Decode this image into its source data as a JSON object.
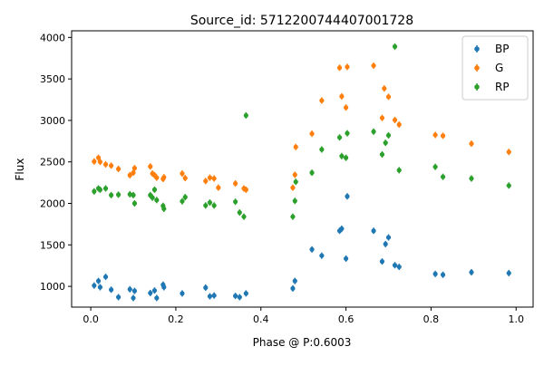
{
  "chart_data": {
    "type": "scatter",
    "title": "Source_id: 5712200744407001728",
    "xlabel": "Phase @ P:0.6003",
    "ylabel": "Flux",
    "xlim": [
      -0.045,
      1.04
    ],
    "ylim": [
      750,
      4080
    ],
    "xticks": [
      0.0,
      0.2,
      0.4,
      0.6,
      0.8,
      1.0
    ],
    "xtick_labels": [
      "0.0",
      "0.2",
      "0.4",
      "0.6",
      "0.8",
      "1.0"
    ],
    "yticks": [
      1000,
      1500,
      2000,
      2500,
      3000,
      3500,
      4000
    ],
    "ytick_labels": [
      "1000",
      "1500",
      "2000",
      "2500",
      "3000",
      "3500",
      "4000"
    ],
    "grid": false,
    "legend_position": "top-right",
    "series": [
      {
        "name": "BP",
        "color": "#1f77b4",
        "points": [
          [
            0.008,
            1010
          ],
          [
            0.018,
            1065
          ],
          [
            0.022,
            990
          ],
          [
            0.035,
            1115
          ],
          [
            0.048,
            960
          ],
          [
            0.065,
            870
          ],
          [
            0.092,
            965
          ],
          [
            0.1,
            860
          ],
          [
            0.103,
            945
          ],
          [
            0.14,
            920
          ],
          [
            0.15,
            950
          ],
          [
            0.155,
            860
          ],
          [
            0.17,
            1020
          ],
          [
            0.172,
            990
          ],
          [
            0.215,
            915
          ],
          [
            0.27,
            985
          ],
          [
            0.28,
            880
          ],
          [
            0.29,
            890
          ],
          [
            0.34,
            885
          ],
          [
            0.35,
            870
          ],
          [
            0.365,
            915
          ],
          [
            0.475,
            975
          ],
          [
            0.48,
            1065
          ],
          [
            0.52,
            1445
          ],
          [
            0.543,
            1370
          ],
          [
            0.585,
            1670
          ],
          [
            0.59,
            1695
          ],
          [
            0.6,
            1335
          ],
          [
            0.603,
            2085
          ],
          [
            0.665,
            1670
          ],
          [
            0.685,
            1300
          ],
          [
            0.693,
            1510
          ],
          [
            0.7,
            1590
          ],
          [
            0.715,
            1255
          ],
          [
            0.725,
            1235
          ],
          [
            0.81,
            1150
          ],
          [
            0.828,
            1140
          ],
          [
            0.895,
            1170
          ],
          [
            0.983,
            1160
          ]
        ]
      },
      {
        "name": "G",
        "color": "#ff7f0e",
        "points": [
          [
            0.008,
            2505
          ],
          [
            0.018,
            2550
          ],
          [
            0.022,
            2500
          ],
          [
            0.035,
            2470
          ],
          [
            0.048,
            2455
          ],
          [
            0.065,
            2415
          ],
          [
            0.092,
            2340
          ],
          [
            0.1,
            2370
          ],
          [
            0.103,
            2425
          ],
          [
            0.14,
            2445
          ],
          [
            0.145,
            2360
          ],
          [
            0.15,
            2340
          ],
          [
            0.155,
            2310
          ],
          [
            0.17,
            2295
          ],
          [
            0.172,
            2315
          ],
          [
            0.215,
            2360
          ],
          [
            0.222,
            2305
          ],
          [
            0.27,
            2270
          ],
          [
            0.28,
            2310
          ],
          [
            0.29,
            2300
          ],
          [
            0.3,
            2190
          ],
          [
            0.34,
            2240
          ],
          [
            0.36,
            2180
          ],
          [
            0.365,
            2165
          ],
          [
            0.475,
            2190
          ],
          [
            0.48,
            2345
          ],
          [
            0.482,
            2680
          ],
          [
            0.52,
            2840
          ],
          [
            0.543,
            3240
          ],
          [
            0.585,
            3635
          ],
          [
            0.59,
            3290
          ],
          [
            0.6,
            3155
          ],
          [
            0.603,
            3645
          ],
          [
            0.665,
            3660
          ],
          [
            0.685,
            3030
          ],
          [
            0.69,
            3385
          ],
          [
            0.7,
            3285
          ],
          [
            0.715,
            3005
          ],
          [
            0.725,
            2950
          ],
          [
            0.81,
            2825
          ],
          [
            0.828,
            2815
          ],
          [
            0.895,
            2720
          ],
          [
            0.983,
            2620
          ]
        ]
      },
      {
        "name": "RP",
        "color": "#2ca02c",
        "points": [
          [
            0.008,
            2145
          ],
          [
            0.018,
            2180
          ],
          [
            0.022,
            2165
          ],
          [
            0.035,
            2180
          ],
          [
            0.048,
            2100
          ],
          [
            0.065,
            2105
          ],
          [
            0.092,
            2110
          ],
          [
            0.1,
            2100
          ],
          [
            0.103,
            2000
          ],
          [
            0.14,
            2100
          ],
          [
            0.145,
            2070
          ],
          [
            0.15,
            2165
          ],
          [
            0.155,
            2040
          ],
          [
            0.17,
            1970
          ],
          [
            0.172,
            1935
          ],
          [
            0.215,
            2025
          ],
          [
            0.222,
            2075
          ],
          [
            0.27,
            1975
          ],
          [
            0.28,
            2010
          ],
          [
            0.29,
            1975
          ],
          [
            0.34,
            2020
          ],
          [
            0.35,
            1890
          ],
          [
            0.36,
            1840
          ],
          [
            0.365,
            3060
          ],
          [
            0.475,
            1840
          ],
          [
            0.48,
            2030
          ],
          [
            0.482,
            2260
          ],
          [
            0.52,
            2370
          ],
          [
            0.543,
            2650
          ],
          [
            0.585,
            2795
          ],
          [
            0.59,
            2570
          ],
          [
            0.6,
            2550
          ],
          [
            0.603,
            2845
          ],
          [
            0.665,
            2865
          ],
          [
            0.685,
            2590
          ],
          [
            0.693,
            2730
          ],
          [
            0.7,
            2820
          ],
          [
            0.715,
            3890
          ],
          [
            0.725,
            2400
          ],
          [
            0.81,
            2440
          ],
          [
            0.828,
            2320
          ],
          [
            0.895,
            2300
          ],
          [
            0.983,
            2215
          ]
        ]
      }
    ]
  }
}
